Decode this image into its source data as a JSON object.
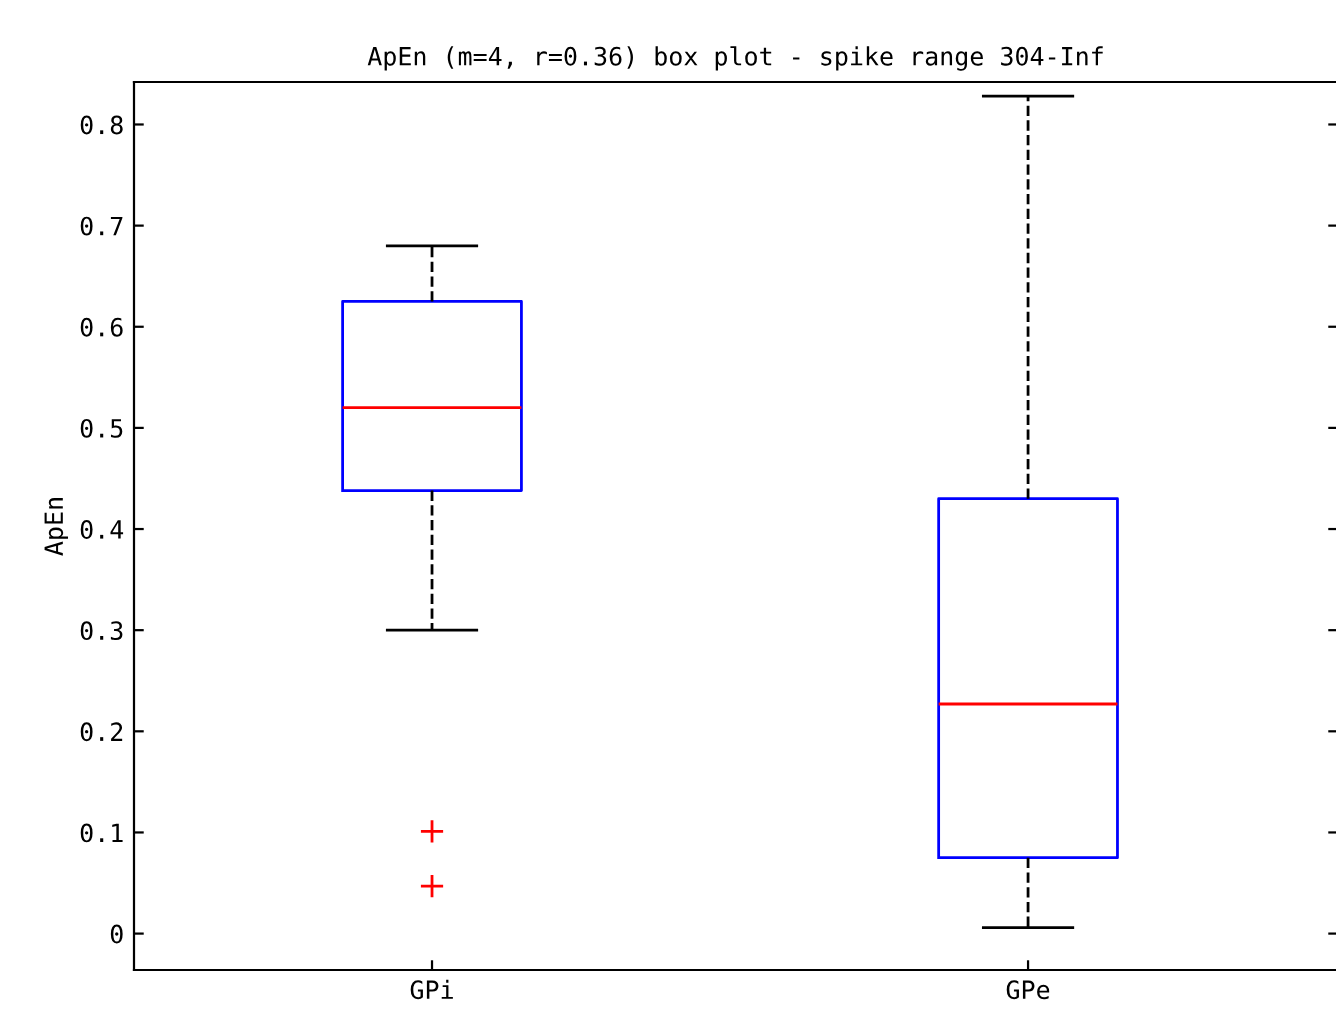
{
  "chart_data": {
    "type": "box",
    "title": "ApEn (m=4, r=0.36) box plot - spike range 304-Inf",
    "ylabel": "ApEn",
    "categories": [
      "GPi",
      "GPe"
    ],
    "boxes": [
      {
        "low": 0.3,
        "q1": 0.438,
        "median": 0.52,
        "q3": 0.625,
        "high": 0.68,
        "outliers": [
          0.101,
          0.047
        ]
      },
      {
        "low": 0.006,
        "q1": 0.075,
        "median": 0.227,
        "q3": 0.43,
        "high": 0.828
      }
    ],
    "ylim": [
      -0.036,
      0.842
    ],
    "yticks": [
      0,
      0.1,
      0.2,
      0.3,
      0.4,
      0.5,
      0.6,
      0.7,
      0.8
    ],
    "grid": false,
    "color": "#0000ff",
    "marker": "cross",
    "line_style": "dashed"
  }
}
